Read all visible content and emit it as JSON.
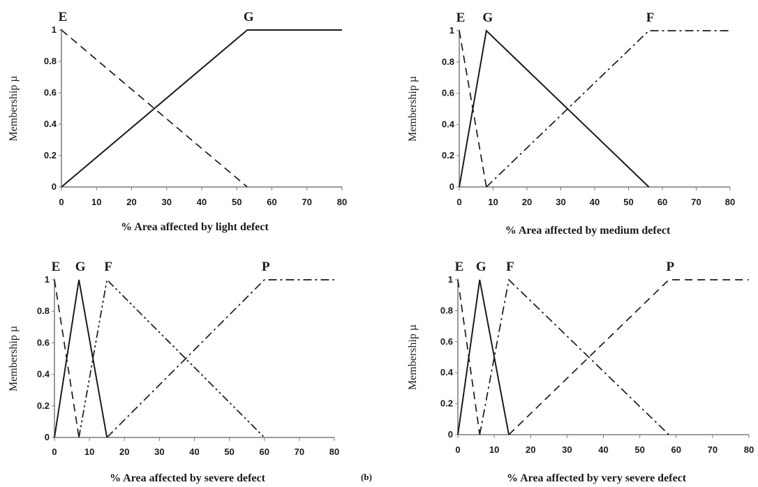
{
  "figure": {
    "panel_tag": "(b)"
  },
  "chart_data": [
    {
      "type": "line",
      "xlabel": "% Area affected by light defect",
      "ylabel": "Membership µ",
      "xlim": [
        0,
        80
      ],
      "ylim": [
        0,
        1
      ],
      "xticks": [
        0,
        10,
        20,
        30,
        40,
        50,
        60,
        70,
        80
      ],
      "yticks": [
        0,
        0.2,
        0.4,
        0.6,
        0.8,
        1
      ],
      "series": [
        {
          "name": "E",
          "dash": "dashed",
          "x": [
            0,
            53
          ],
          "y": [
            1,
            0
          ]
        },
        {
          "name": "G",
          "dash": "solid",
          "x": [
            0,
            53,
            80
          ],
          "y": [
            0,
            1,
            1
          ]
        }
      ]
    },
    {
      "type": "line",
      "xlabel": "% Area affected by medium defect",
      "ylabel": "Membership µ",
      "xlim": [
        0,
        80
      ],
      "ylim": [
        0,
        1
      ],
      "xticks": [
        0,
        10,
        20,
        30,
        40,
        50,
        60,
        70,
        80
      ],
      "yticks": [
        0,
        0.2,
        0.4,
        0.6,
        0.8,
        1
      ],
      "series": [
        {
          "name": "E",
          "dash": "dashed",
          "x": [
            0,
            8
          ],
          "y": [
            1,
            0
          ]
        },
        {
          "name": "G",
          "dash": "solid",
          "x": [
            0,
            8,
            56
          ],
          "y": [
            0,
            1,
            0
          ]
        },
        {
          "name": "F",
          "dash": "dashdot",
          "x": [
            8,
            56,
            80
          ],
          "y": [
            0,
            1,
            1
          ]
        }
      ]
    },
    {
      "type": "line",
      "xlabel": "% Area affected by severe defect",
      "ylabel": "Membership µ",
      "xlim": [
        0,
        80
      ],
      "ylim": [
        0,
        1
      ],
      "xticks": [
        0,
        10,
        20,
        30,
        40,
        50,
        60,
        70,
        80
      ],
      "yticks": [
        0,
        0.2,
        0.4,
        0.6,
        0.8,
        1
      ],
      "series": [
        {
          "name": "E",
          "dash": "dashed",
          "x": [
            0,
            7
          ],
          "y": [
            1,
            0
          ]
        },
        {
          "name": "G",
          "dash": "solid",
          "x": [
            0,
            7,
            15
          ],
          "y": [
            0,
            1,
            0
          ]
        },
        {
          "name": "F",
          "dash": "dashdotdot",
          "x": [
            7,
            15,
            60
          ],
          "y": [
            0,
            1,
            0
          ]
        },
        {
          "name": "P",
          "dash": "dashdot",
          "x": [
            15,
            60,
            80
          ],
          "y": [
            0,
            1,
            1
          ]
        }
      ]
    },
    {
      "type": "line",
      "xlabel": "% Area affected by very severe defect",
      "ylabel": "Membership µ",
      "xlim": [
        0,
        80
      ],
      "ylim": [
        0,
        1
      ],
      "xticks": [
        0,
        10,
        20,
        30,
        40,
        50,
        60,
        70,
        80
      ],
      "yticks": [
        0,
        0.2,
        0.4,
        0.6,
        0.8,
        1
      ],
      "series": [
        {
          "name": "E",
          "dash": "dashed",
          "x": [
            0,
            6
          ],
          "y": [
            1,
            0
          ]
        },
        {
          "name": "G",
          "dash": "solid",
          "x": [
            0,
            6,
            14
          ],
          "y": [
            0,
            1,
            0
          ]
        },
        {
          "name": "F",
          "dash": "dashdot",
          "x": [
            6,
            14,
            58
          ],
          "y": [
            0,
            1,
            0
          ]
        },
        {
          "name": "P",
          "dash": "dashed",
          "x": [
            14,
            58,
            80
          ],
          "y": [
            0,
            1,
            1
          ]
        }
      ]
    }
  ]
}
